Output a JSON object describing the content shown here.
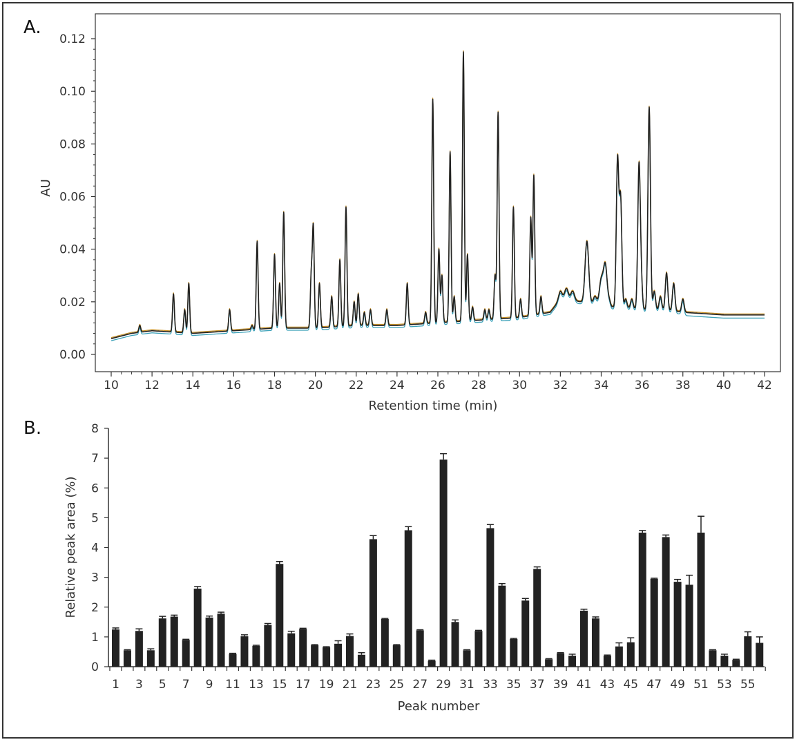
{
  "panel_a": {
    "label": "A.",
    "xlabel": "Retention time (min)",
    "ylabel": "AU",
    "x_ticks": [
      "10",
      "12",
      "14",
      "16",
      "18",
      "20",
      "22",
      "24",
      "26",
      "28",
      "30",
      "32",
      "34",
      "36",
      "38",
      "40",
      "42"
    ],
    "y_ticks": [
      "0.00",
      "0.02",
      "0.04",
      "0.06",
      "0.08",
      "0.10",
      "0.12"
    ]
  },
  "panel_b": {
    "label": "B.",
    "xlabel": "Peak number",
    "ylabel": "Relative peak area (%)",
    "x_ticks": [
      "1",
      "3",
      "5",
      "7",
      "9",
      "11",
      "13",
      "15",
      "17",
      "19",
      "21",
      "23",
      "25",
      "27",
      "29",
      "31",
      "33",
      "35",
      "37",
      "39",
      "41",
      "43",
      "45",
      "47",
      "49",
      "51",
      "53",
      "55"
    ],
    "y_ticks": [
      "0",
      "1",
      "2",
      "3",
      "4",
      "5",
      "6",
      "7",
      "8"
    ]
  },
  "chart_data": [
    {
      "type": "line",
      "xlabel": "Retention time (min)",
      "ylabel": "AU",
      "xlim": [
        10,
        42
      ],
      "ylim": [
        0,
        0.12
      ],
      "baseline": [
        [
          10,
          0.006
        ],
        [
          11,
          0.008
        ],
        [
          12,
          0.009
        ],
        [
          14,
          0.008
        ],
        [
          16,
          0.009
        ],
        [
          18,
          0.01
        ],
        [
          20,
          0.01
        ],
        [
          22,
          0.011
        ],
        [
          24,
          0.011
        ],
        [
          26,
          0.012
        ],
        [
          28,
          0.013
        ],
        [
          30,
          0.014
        ],
        [
          31.5,
          0.016
        ],
        [
          32,
          0.021
        ],
        [
          33,
          0.02
        ],
        [
          34,
          0.018
        ],
        [
          35,
          0.018
        ],
        [
          36,
          0.017
        ],
        [
          37,
          0.017
        ],
        [
          38,
          0.016
        ],
        [
          40,
          0.015
        ],
        [
          42,
          0.015
        ]
      ],
      "peaks": [
        [
          11.4,
          0.011
        ],
        [
          13.05,
          0.023
        ],
        [
          13.6,
          0.017
        ],
        [
          13.8,
          0.027
        ],
        [
          15.8,
          0.017
        ],
        [
          16.9,
          0.011
        ],
        [
          17.15,
          0.043
        ],
        [
          18.0,
          0.038
        ],
        [
          18.25,
          0.027
        ],
        [
          18.45,
          0.054
        ],
        [
          19.8,
          0.03
        ],
        [
          19.9,
          0.048
        ],
        [
          20.2,
          0.027
        ],
        [
          20.8,
          0.022
        ],
        [
          21.2,
          0.036
        ],
        [
          21.5,
          0.056
        ],
        [
          21.9,
          0.02
        ],
        [
          22.1,
          0.023
        ],
        [
          22.4,
          0.016
        ],
        [
          22.7,
          0.017
        ],
        [
          23.5,
          0.017
        ],
        [
          24.5,
          0.027
        ],
        [
          25.4,
          0.016
        ],
        [
          25.75,
          0.097
        ],
        [
          26.05,
          0.04
        ],
        [
          26.2,
          0.03
        ],
        [
          26.6,
          0.077
        ],
        [
          26.8,
          0.022
        ],
        [
          27.25,
          0.115
        ],
        [
          27.45,
          0.038
        ],
        [
          27.7,
          0.018
        ],
        [
          28.3,
          0.017
        ],
        [
          28.5,
          0.017
        ],
        [
          28.8,
          0.03
        ],
        [
          28.95,
          0.092
        ],
        [
          29.7,
          0.056
        ],
        [
          30.05,
          0.021
        ],
        [
          30.55,
          0.052
        ],
        [
          30.7,
          0.068
        ],
        [
          31.05,
          0.022
        ],
        [
          32.0,
          0.024
        ],
        [
          32.3,
          0.025
        ],
        [
          32.6,
          0.024
        ],
        [
          33.3,
          0.043
        ],
        [
          33.7,
          0.022
        ],
        [
          34.0,
          0.028
        ],
        [
          34.2,
          0.034
        ],
        [
          34.4,
          0.02
        ],
        [
          34.8,
          0.074
        ],
        [
          34.95,
          0.059
        ],
        [
          35.2,
          0.021
        ],
        [
          35.5,
          0.021
        ],
        [
          35.85,
          0.07
        ],
        [
          35.95,
          0.029
        ],
        [
          36.35,
          0.094
        ],
        [
          36.6,
          0.024
        ],
        [
          36.9,
          0.022
        ],
        [
          37.2,
          0.031
        ],
        [
          37.55,
          0.027
        ],
        [
          38.0,
          0.021
        ]
      ],
      "series": [
        {
          "name": "",
          "color": "#222222"
        },
        {
          "name": "",
          "color": "#3aa0b8"
        },
        {
          "name": "",
          "color": "#c8922a"
        }
      ]
    },
    {
      "type": "bar",
      "xlabel": "Peak number",
      "ylabel": "Relative peak area (%)",
      "ylim": [
        0,
        8
      ],
      "categories": [
        "1",
        "2",
        "3",
        "4",
        "5",
        "6",
        "7",
        "8",
        "9",
        "10",
        "11",
        "12",
        "13",
        "14",
        "15",
        "16",
        "17",
        "18",
        "19",
        "20",
        "21",
        "22",
        "23",
        "24",
        "25",
        "26",
        "27",
        "28",
        "29",
        "30",
        "31",
        "32",
        "33",
        "34",
        "35",
        "36",
        "37",
        "38",
        "39",
        "40",
        "41",
        "42",
        "43",
        "44",
        "45",
        "46",
        "47",
        "48",
        "49",
        "50",
        "51",
        "52",
        "53",
        "54",
        "55",
        "56"
      ],
      "values": [
        1.25,
        0.55,
        1.2,
        0.55,
        1.62,
        1.68,
        0.9,
        2.62,
        1.65,
        1.78,
        0.43,
        1.02,
        0.7,
        1.4,
        3.45,
        1.12,
        1.27,
        0.72,
        0.65,
        0.77,
        1.03,
        0.4,
        4.28,
        1.6,
        0.72,
        4.58,
        1.22,
        0.2,
        6.95,
        1.5,
        0.55,
        1.2,
        4.65,
        2.72,
        0.93,
        2.22,
        3.28,
        0.25,
        0.45,
        0.37,
        1.88,
        1.62,
        0.37,
        0.68,
        0.82,
        4.5,
        2.95,
        4.35,
        2.85,
        2.75,
        4.5,
        0.55,
        0.37,
        0.23,
        1.02,
        0.8
      ],
      "errors": [
        0.05,
        0.02,
        0.07,
        0.05,
        0.07,
        0.05,
        0.02,
        0.07,
        0.05,
        0.05,
        0.02,
        0.05,
        0.02,
        0.05,
        0.08,
        0.07,
        0.02,
        0.02,
        0.02,
        0.1,
        0.07,
        0.07,
        0.12,
        0.02,
        0.02,
        0.12,
        0.02,
        0.02,
        0.2,
        0.07,
        0.02,
        0.02,
        0.12,
        0.07,
        0.02,
        0.07,
        0.07,
        0.02,
        0.02,
        0.05,
        0.05,
        0.05,
        0.02,
        0.12,
        0.15,
        0.07,
        0.02,
        0.07,
        0.08,
        0.32,
        0.55,
        0.02,
        0.05,
        0.02,
        0.15,
        0.2
      ],
      "bar_color": "#222222"
    }
  ]
}
